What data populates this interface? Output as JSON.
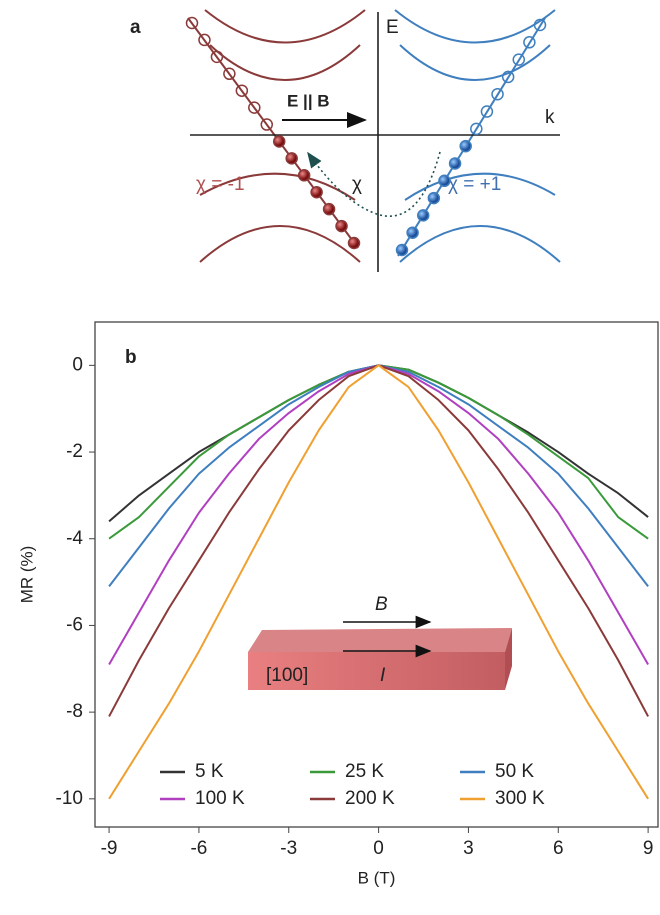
{
  "panel_a": {
    "label": "a",
    "e_axis": "E",
    "k_axis": "k",
    "field": "E || B",
    "chirality_left": "χ = -1",
    "chirality_right": "χ = +1",
    "pump": "χ"
  },
  "chart_data": {
    "type": "line",
    "panel_label": "b",
    "xlabel": "B (T)",
    "ylabel": "MR (%)",
    "x": [
      -9,
      -8,
      -7,
      -6,
      -5,
      -4,
      -3,
      -2,
      -1,
      0,
      1,
      2,
      3,
      4,
      5,
      6,
      7,
      8,
      9
    ],
    "series": [
      {
        "name": "5 K",
        "color": "#333333",
        "values": [
          -3.6,
          -3.0,
          -2.5,
          -2.0,
          -1.6,
          -1.2,
          -0.8,
          -0.45,
          -0.15,
          0,
          -0.1,
          -0.4,
          -0.75,
          -1.15,
          -1.55,
          -2.0,
          -2.5,
          -2.95,
          -3.5
        ]
      },
      {
        "name": "25 K",
        "color": "#3a9a3a",
        "values": [
          -4.0,
          -3.5,
          -2.8,
          -2.1,
          -1.6,
          -1.2,
          -0.8,
          -0.45,
          -0.15,
          0,
          -0.1,
          -0.4,
          -0.75,
          -1.15,
          -1.6,
          -2.1,
          -2.6,
          -3.5,
          -4.0
        ]
      },
      {
        "name": "50 K",
        "color": "#3f7fbf",
        "values": [
          -5.1,
          -4.2,
          -3.3,
          -2.5,
          -1.9,
          -1.4,
          -0.9,
          -0.5,
          -0.15,
          0,
          -0.15,
          -0.5,
          -0.9,
          -1.4,
          -1.9,
          -2.5,
          -3.3,
          -4.2,
          -5.1
        ]
      },
      {
        "name": "100 K",
        "color": "#b040c0",
        "values": [
          -6.9,
          -5.7,
          -4.5,
          -3.4,
          -2.5,
          -1.7,
          -1.1,
          -0.6,
          -0.2,
          0,
          -0.2,
          -0.6,
          -1.1,
          -1.7,
          -2.5,
          -3.4,
          -4.5,
          -5.7,
          -6.9
        ]
      },
      {
        "name": "200 K",
        "color": "#8b3a3a",
        "values": [
          -8.1,
          -6.8,
          -5.6,
          -4.5,
          -3.4,
          -2.4,
          -1.5,
          -0.8,
          -0.25,
          0,
          -0.25,
          -0.8,
          -1.5,
          -2.4,
          -3.4,
          -4.5,
          -5.6,
          -6.8,
          -8.1
        ]
      },
      {
        "name": "300 K",
        "color": "#f0a030",
        "values": [
          -10,
          -8.9,
          -7.8,
          -6.6,
          -5.3,
          -4.0,
          -2.7,
          -1.5,
          -0.5,
          0,
          -0.5,
          -1.5,
          -2.7,
          -4.0,
          -5.3,
          -6.6,
          -7.8,
          -8.9,
          -10
        ]
      }
    ],
    "xlim": [
      -9.47,
      9.33
    ],
    "ylim": [
      -10.65,
      1.0
    ],
    "xticks": [
      -9,
      -6,
      -3,
      0,
      3,
      6,
      9
    ],
    "yticks": [
      -10,
      -8,
      -6,
      -4,
      -2,
      0
    ],
    "annotations": {
      "field": "B",
      "current": "I",
      "direction": "[100]"
    }
  }
}
